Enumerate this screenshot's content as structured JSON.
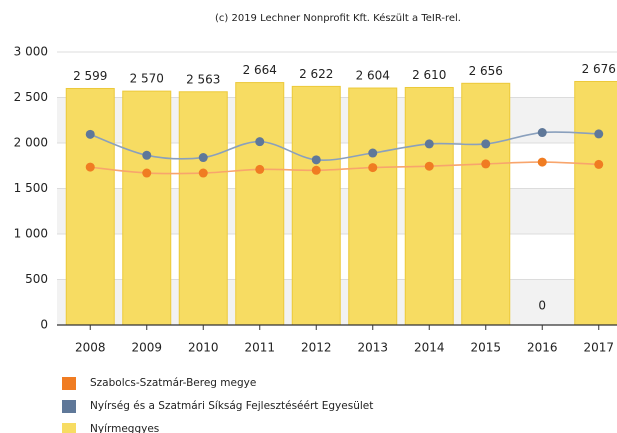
{
  "chart_data": {
    "type": "bar",
    "title": "(c) 2019 Lechner Nonprofit Kft. Készült a TeIR-rel.",
    "categories": [
      "2008",
      "2009",
      "2010",
      "2011",
      "2012",
      "2013",
      "2014",
      "2015",
      "2016",
      "2017"
    ],
    "series": [
      {
        "name": "Szabolcs-Szatmár-Bereg megye",
        "type": "line",
        "color": "#f07c22",
        "line_color": "#f8a56c",
        "values": [
          1735,
          1670,
          1670,
          1710,
          1700,
          1730,
          1745,
          1770,
          1790,
          1765
        ]
      },
      {
        "name": "Nyírség és a Szatmári Síkság Fejlesztéséért Egyesület",
        "type": "line",
        "color": "#5f7899",
        "line_color": "#8aa0bd",
        "values": [
          2095,
          1865,
          1840,
          2015,
          1815,
          1890,
          1990,
          1990,
          2115,
          2100
        ]
      },
      {
        "name": "Nyírmeggyes",
        "type": "bar",
        "color": "#f7dc62",
        "values": [
          2599,
          2570,
          2563,
          2664,
          2622,
          2604,
          2610,
          2656,
          0,
          2676
        ],
        "value_labels": [
          "2 599",
          "2 570",
          "2 563",
          "2 664",
          "2 622",
          "2 604",
          "2 610",
          "2 656",
          "0",
          "2 676"
        ]
      }
    ],
    "ylim": [
      0,
      3000
    ],
    "yticks": [
      0,
      500,
      {
        "value": 1000,
        "label": "1 000"
      },
      {
        "value": 1500,
        "label": "1 500"
      },
      {
        "value": 2000,
        "label": "2 000"
      },
      {
        "value": 2500,
        "label": "2 500"
      },
      {
        "value": 3000,
        "label": "3 000"
      }
    ],
    "grid": true
  }
}
